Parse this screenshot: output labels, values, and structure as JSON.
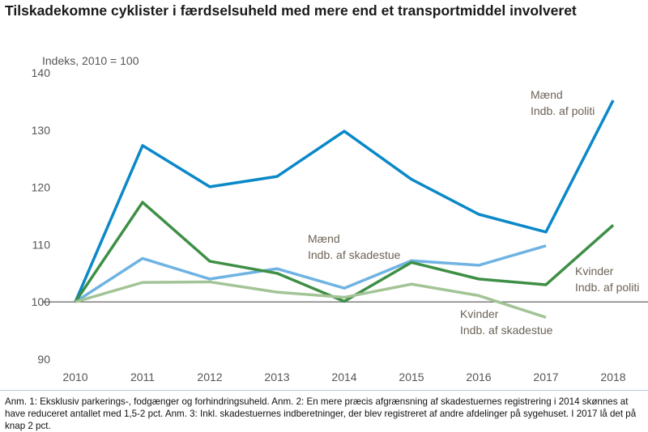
{
  "chart_data": {
    "type": "line",
    "title": "Tilskadekomne cyklister i færdselsuheld med mere end et transportmiddel involveret",
    "ylabel": "Indeks, 2010 = 100",
    "xlabel": "",
    "ylim": [
      90,
      140
    ],
    "yticks": [
      90,
      100,
      110,
      120,
      130,
      140
    ],
    "categories": [
      "2010",
      "2011",
      "2012",
      "2013",
      "2014",
      "2015",
      "2016",
      "2017",
      "2018"
    ],
    "grid": false,
    "series": [
      {
        "name": "Mænd Indb. af politi",
        "label": [
          "Mænd",
          "Indb. af politi"
        ],
        "color": "#0a88c8",
        "values": [
          100,
          127.3,
          120.1,
          121.9,
          129.8,
          121.4,
          115.3,
          112.2,
          135.2
        ]
      },
      {
        "name": "Mænd Indb. af skadestue",
        "label": [
          "Mænd",
          "Indb. af skadestue"
        ],
        "color": "#6fb3e3",
        "values": [
          100,
          107.6,
          104.0,
          105.8,
          102.4,
          107.2,
          106.4,
          109.8,
          null
        ]
      },
      {
        "name": "Kvinder Indb. af politi",
        "label": [
          "Kvinder",
          "Indb. af politi"
        ],
        "color": "#3e8f45",
        "values": [
          100,
          117.4,
          107.1,
          105.0,
          100.1,
          106.9,
          104.0,
          103.0,
          113.4
        ]
      },
      {
        "name": "Kvinder Indb. af skadestue",
        "label": [
          "Kvinder",
          "Indb. af skadestue"
        ],
        "color": "#a3c496",
        "values": [
          100,
          103.4,
          103.5,
          101.7,
          100.8,
          103.1,
          101.1,
          97.3,
          null
        ]
      }
    ]
  },
  "notes": "Anm. 1: Eksklusiv parkerings-, fodgænger og forhindringsuheld. Anm. 2: En mere præcis afgrænsning af skadestuernes registrering i 2014 skønnes at have reduceret antallet med 1,5-2 pct. Anm. 3: Inkl. skadestuernes indberetninger, der blev registreret af andre afdelinger på sygehuset. I 2017 lå det på knap 2 pct."
}
